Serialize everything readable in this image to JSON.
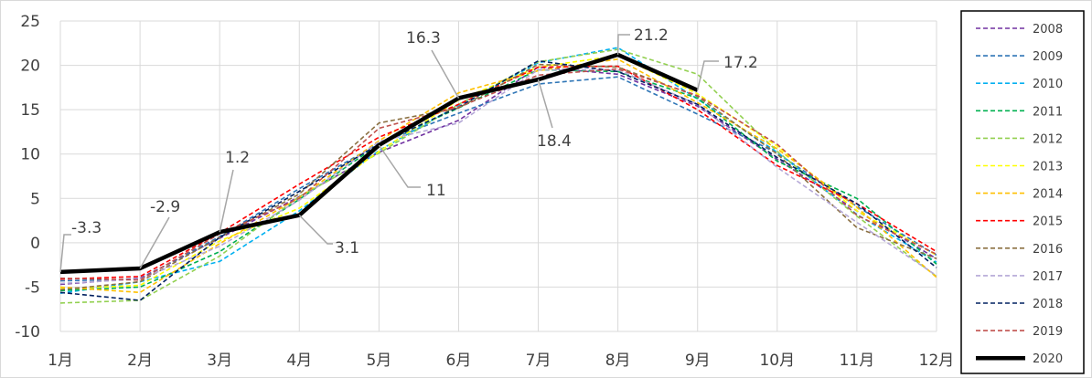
{
  "chart_data": {
    "type": "line",
    "title": "",
    "xlabel": "",
    "ylabel": "",
    "categories": [
      "1月",
      "2月",
      "3月",
      "4月",
      "5月",
      "6月",
      "7月",
      "8月",
      "9月",
      "10月",
      "11月",
      "12月"
    ],
    "ylim": [
      -10,
      25
    ],
    "yticks": [
      -10,
      -5,
      0,
      5,
      10,
      15,
      20,
      25
    ],
    "grid": true,
    "legend_position": "right",
    "series": [
      {
        "name": "2008",
        "color": "#7030A0",
        "dashed": true,
        "values": [
          -4.7,
          -4.0,
          0.5,
          5.2,
          10.2,
          13.8,
          19.8,
          19.0,
          15.4,
          9.4,
          3.6,
          -1.8
        ]
      },
      {
        "name": "2009",
        "color": "#2E75B6",
        "dashed": true,
        "values": [
          -4.3,
          -4.1,
          0.7,
          6.1,
          11.2,
          14.6,
          17.9,
          18.7,
          14.5,
          10.1,
          4.1,
          -1.4
        ]
      },
      {
        "name": "2010",
        "color": "#00B0F0",
        "dashed": true,
        "values": [
          -5.7,
          -4.4,
          -2.1,
          3.6,
          10.4,
          15.5,
          20.3,
          22.0,
          16.2,
          10.2,
          3.2,
          -2.2
        ]
      },
      {
        "name": "2011",
        "color": "#00B050",
        "dashed": true,
        "values": [
          -5.4,
          -5.0,
          -1.0,
          4.9,
          11.1,
          15.2,
          19.5,
          19.3,
          16.3,
          9.2,
          5.0,
          -2.4
        ]
      },
      {
        "name": "2012",
        "color": "#92D050",
        "dashed": true,
        "values": [
          -6.8,
          -6.5,
          -1.5,
          5.2,
          10.1,
          15.6,
          20.4,
          21.8,
          19.0,
          10.3,
          3.0,
          -3.8
        ]
      },
      {
        "name": "2013",
        "color": "#FFFF00",
        "dashed": true,
        "values": [
          -5.2,
          -4.8,
          0.2,
          3.9,
          10.3,
          16.1,
          19.8,
          21.1,
          16.8,
          10.9,
          3.6,
          -1.4
        ]
      },
      {
        "name": "2014",
        "color": "#FFC000",
        "dashed": true,
        "values": [
          -5.0,
          -5.6,
          -0.1,
          5.1,
          11.5,
          16.9,
          19.4,
          20.7,
          15.8,
          10.6,
          4.0,
          -3.9
        ]
      },
      {
        "name": "2015",
        "color": "#FF0000",
        "dashed": true,
        "values": [
          -4.1,
          -3.8,
          1.1,
          6.6,
          11.9,
          15.6,
          19.8,
          19.9,
          15.0,
          8.7,
          4.4,
          -1.0
        ]
      },
      {
        "name": "2016",
        "color": "#8B7042",
        "dashed": true,
        "values": [
          -5.3,
          -4.4,
          0.6,
          5.5,
          13.5,
          15.2,
          20.1,
          19.8,
          16.5,
          10.0,
          1.7,
          -1.8
        ]
      },
      {
        "name": "2017",
        "color": "#B4A7D6",
        "dashed": true,
        "values": [
          -4.6,
          -4.1,
          -0.4,
          4.8,
          11.4,
          13.5,
          19.5,
          19.5,
          15.6,
          8.5,
          2.3,
          -3.7
        ]
      },
      {
        "name": "2018",
        "color": "#002060",
        "dashed": true,
        "values": [
          -5.6,
          -6.5,
          0.6,
          5.8,
          11.1,
          15.3,
          20.5,
          19.3,
          15.6,
          9.6,
          4.4,
          -2.8
        ]
      },
      {
        "name": "2019",
        "color": "#C0504D",
        "dashed": true,
        "values": [
          -4.0,
          -4.2,
          1.0,
          5.0,
          12.9,
          15.3,
          18.9,
          19.6,
          16.6,
          11.1,
          3.1,
          -1.3
        ]
      },
      {
        "name": "2020",
        "color": "#000000",
        "dashed": false,
        "values": [
          -3.3,
          -2.9,
          1.2,
          3.1,
          11.0,
          16.3,
          18.4,
          21.2,
          17.2,
          null,
          null,
          null
        ]
      }
    ],
    "annotations": [
      {
        "series": "2020",
        "category": "1月",
        "text": "-3.3"
      },
      {
        "series": "2020",
        "category": "2月",
        "text": "-2.9"
      },
      {
        "series": "2020",
        "category": "3月",
        "text": "1.2"
      },
      {
        "series": "2020",
        "category": "4月",
        "text": "3.1"
      },
      {
        "series": "2020",
        "category": "5月",
        "text": "11"
      },
      {
        "series": "2020",
        "category": "6月",
        "text": "16.3"
      },
      {
        "series": "2020",
        "category": "7月",
        "text": "18.4"
      },
      {
        "series": "2020",
        "category": "8月",
        "text": "21.2"
      },
      {
        "series": "2020",
        "category": "9月",
        "text": "17.2"
      }
    ]
  }
}
